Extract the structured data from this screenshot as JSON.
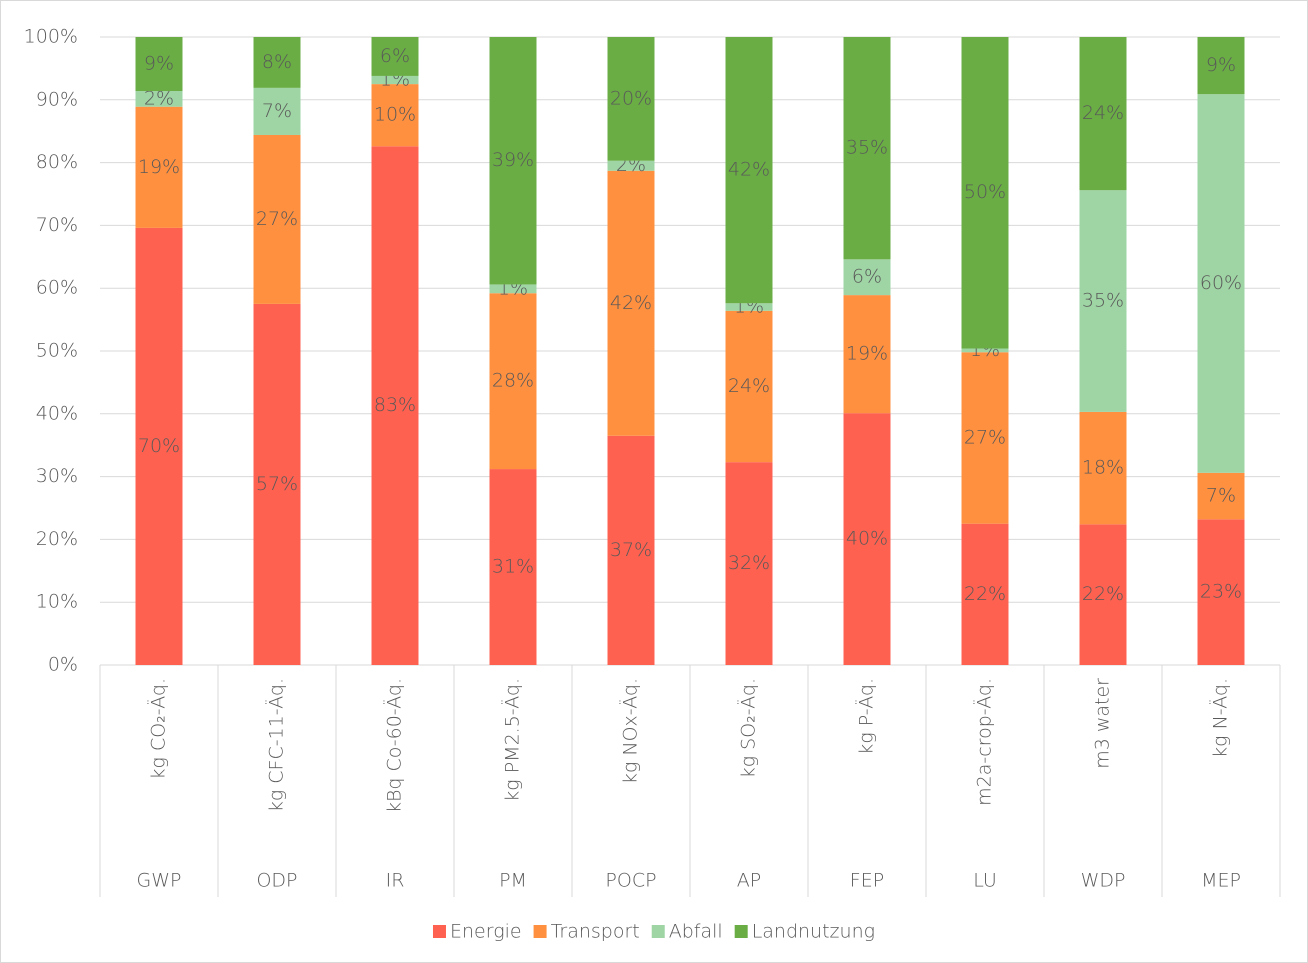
{
  "chart_data": {
    "type": "stacked_bar_100",
    "categories": [
      "GWP",
      "ODP",
      "IR",
      "PM",
      "POCP",
      "AP",
      "FEP",
      "LU",
      "WDP",
      "MEP"
    ],
    "category_units": [
      "kg CO₂-Äq.",
      "kg CFC-11-Äq.",
      "kBq Co-60-Äq.",
      "kg PM2.5-Äq.",
      "kg NOx-Äq.",
      "kg SO₂-Äq.",
      "kg P-Äq.",
      "m2a-crop-Äq.",
      "m3 water",
      "kg N-Äq."
    ],
    "series": [
      {
        "name": "Energie",
        "color": "#ff6150",
        "values": [
          69.6,
          57.5,
          82.6,
          31.2,
          36.5,
          32.3,
          40.1,
          22.5,
          22.4,
          23.2
        ],
        "value_labels": [
          "70%",
          "57%",
          "83%",
          "31%",
          "37%",
          "32%",
          "40%",
          "22%",
          "22%",
          "23%"
        ]
      },
      {
        "name": "Transport",
        "color": "#ff9040",
        "values": [
          19.3,
          26.9,
          9.9,
          28.0,
          42.2,
          24.1,
          18.8,
          27.3,
          17.9,
          7.4
        ],
        "value_labels": [
          "19%",
          "27%",
          "10%",
          "28%",
          "42%",
          "24%",
          "19%",
          "27%",
          "18%",
          "7%"
        ]
      },
      {
        "name": "Abfall",
        "color": "#9fd4a4",
        "values": [
          2.5,
          7.5,
          1.3,
          1.4,
          1.6,
          1.2,
          5.7,
          0.6,
          35.3,
          60.3
        ],
        "value_labels": [
          "2%",
          "7%",
          "1%",
          "1%",
          "2%",
          "1%",
          "6%",
          "1%",
          "35%",
          "60%"
        ]
      },
      {
        "name": "Landnutzung",
        "color": "#6aad45",
        "values": [
          8.6,
          8.1,
          6.2,
          39.4,
          19.7,
          42.4,
          35.4,
          49.6,
          24.4,
          9.1
        ],
        "value_labels": [
          "9%",
          "8%",
          "6%",
          "39%",
          "20%",
          "42%",
          "35%",
          "50%",
          "24%",
          "9%"
        ]
      }
    ],
    "ylim": [
      0,
      100
    ],
    "yticks": [
      {
        "value": 0,
        "label": "0%"
      },
      {
        "value": 10,
        "label": "10%"
      },
      {
        "value": 20,
        "label": "20%"
      },
      {
        "value": 30,
        "label": "30%"
      },
      {
        "value": 40,
        "label": "40%"
      },
      {
        "value": 50,
        "label": "50%"
      },
      {
        "value": 60,
        "label": "60%"
      },
      {
        "value": 70,
        "label": "70%"
      },
      {
        "value": 80,
        "label": "80%"
      },
      {
        "value": 90,
        "label": "90%"
      },
      {
        "value": 100,
        "label": "100%"
      }
    ],
    "grid": true,
    "legend": "bottom"
  }
}
